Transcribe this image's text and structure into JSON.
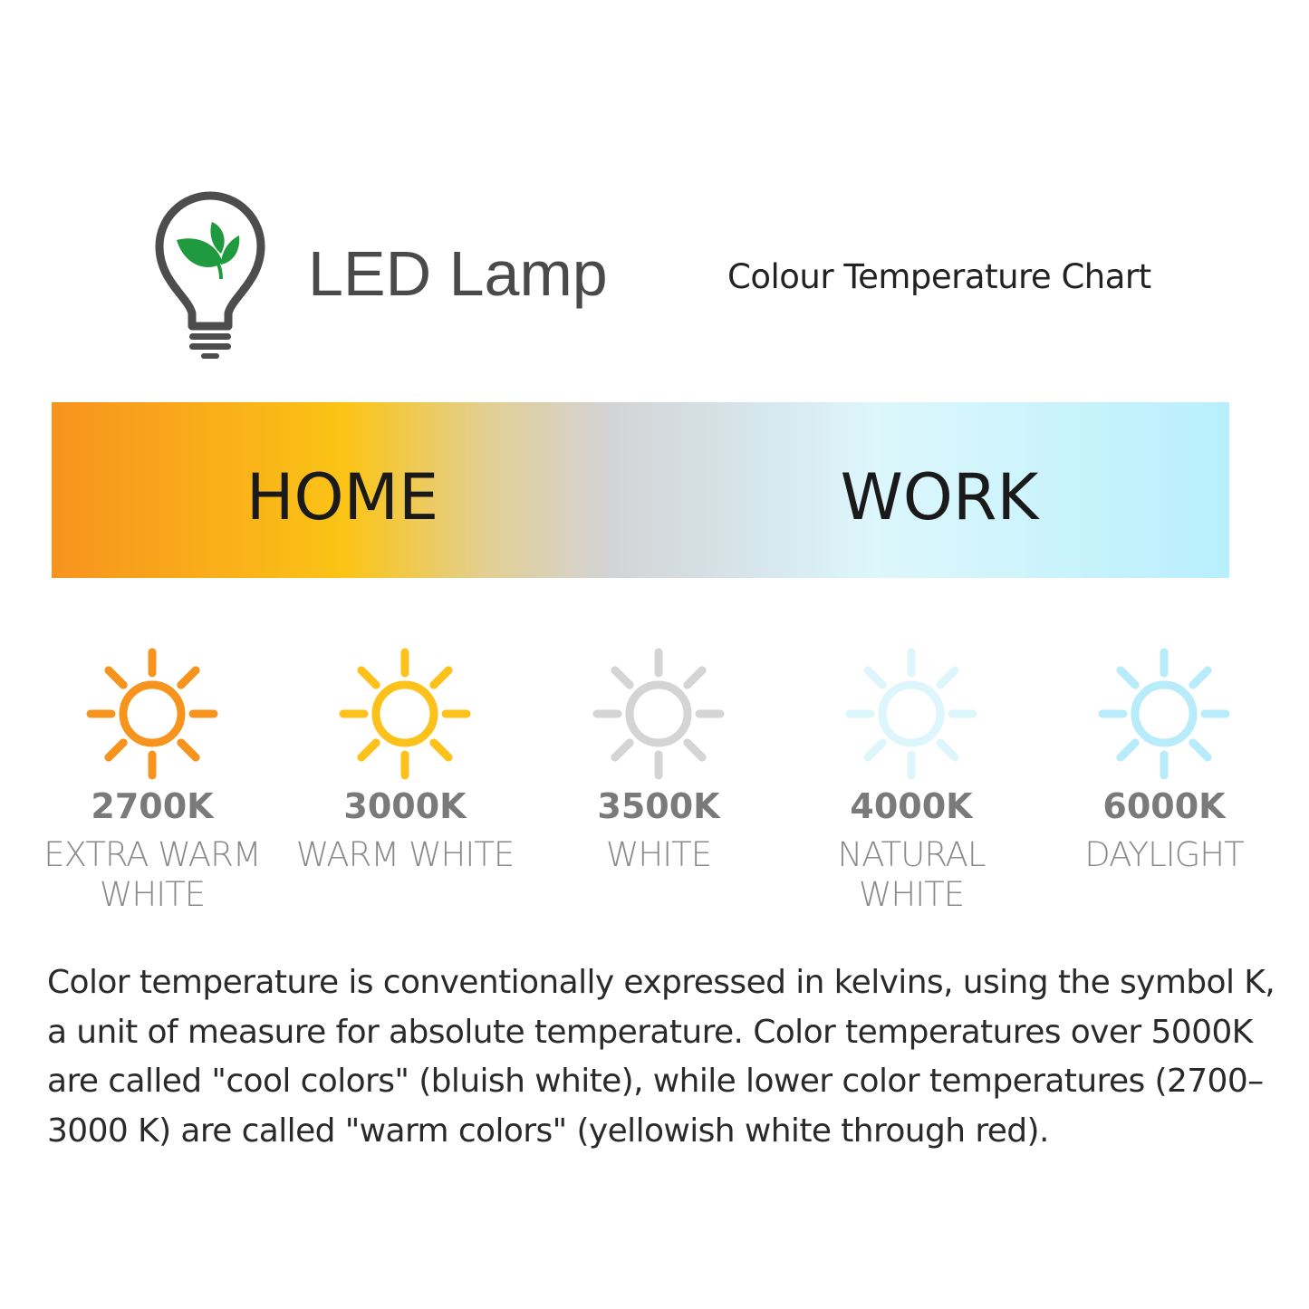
{
  "header": {
    "title": "LED Lamp",
    "subtitle": "Colour Temperature Chart",
    "logo_icon": "lightbulb-leaf-icon"
  },
  "bar": {
    "left_label": "HOME",
    "right_label": "WORK",
    "gradient_colors": [
      "#F7931E",
      "#FBC416",
      "#D3D3D3",
      "#DDF7FC",
      "#B8EFFC"
    ]
  },
  "temperatures": [
    {
      "kelvin": "2700K",
      "label": "EXTRA WARM WHITE",
      "color": "#F7941D",
      "icon": "sun-icon"
    },
    {
      "kelvin": "3000K",
      "label": "WARM WHITE",
      "color": "#FCC21B",
      "icon": "sun-icon"
    },
    {
      "kelvin": "3500K",
      "label": "WHITE",
      "color": "#D4D4D4",
      "icon": "sun-icon"
    },
    {
      "kelvin": "4000K",
      "label": "NATURAL WHITE",
      "color": "#DDF6FC",
      "icon": "sun-icon"
    },
    {
      "kelvin": "6000K",
      "label": "DAYLIGHT",
      "color": "#B9ECFA",
      "icon": "sun-icon"
    }
  ],
  "description": "Color temperature is conventionally expressed in kelvins, using the symbol K, a unit of measure for absolute temperature. Color temperatures over 5000K are called \"cool colors\" (bluish white), while lower color temperatures (2700–3000 K) are called \"warm colors\" (yellowish white through red)."
}
